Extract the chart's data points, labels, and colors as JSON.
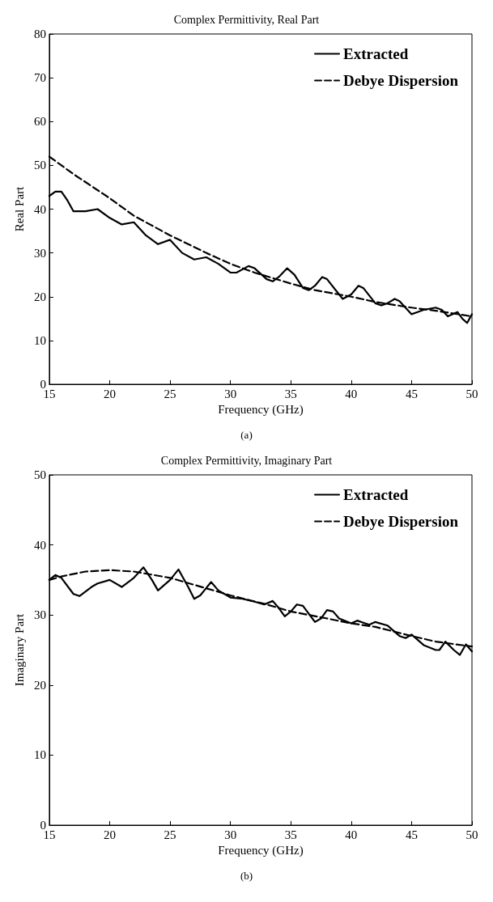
{
  "chart_data": [
    {
      "type": "line",
      "title": "Complex Permittivity, Real Part",
      "xlabel": "Frequency (GHz)",
      "ylabel": "Real Part",
      "annotations": [
        "(a)"
      ],
      "xlim": [
        15,
        50
      ],
      "xticks": [
        15,
        20,
        25,
        30,
        35,
        40,
        45,
        50
      ],
      "ylim": [
        0,
        80
      ],
      "yticks": [
        0,
        10,
        20,
        30,
        40,
        50,
        60,
        70,
        80
      ],
      "grid": false,
      "legend": "top right",
      "marker": "none",
      "series": [
        {
          "name": "Extracted",
          "color": "#000000",
          "line_style": "solid",
          "x": [
            15,
            15.5,
            16,
            16.5,
            17,
            18,
            19,
            20,
            21,
            22,
            23,
            24,
            25,
            26,
            27,
            28,
            29,
            30,
            30.5,
            31.5,
            32,
            33,
            33.5,
            34,
            34.7,
            35.3,
            36,
            36.5,
            37,
            37.6,
            38,
            39,
            39.3,
            40,
            40.6,
            41,
            42,
            42.5,
            43,
            43.6,
            44,
            45,
            45.5,
            46,
            47,
            47.5,
            48,
            48.8,
            49.2,
            49.6,
            50
          ],
          "values": [
            43,
            44,
            44,
            42,
            39.5,
            39.5,
            40,
            38,
            36.5,
            37,
            34,
            32,
            33,
            30,
            28.5,
            29,
            27.5,
            25.5,
            25.5,
            27,
            26.5,
            24,
            23.5,
            24.5,
            26.5,
            25,
            22,
            21.5,
            22.5,
            24.5,
            24,
            20.5,
            19.5,
            20.5,
            22.5,
            22,
            18.5,
            18,
            18.5,
            19.5,
            19,
            16,
            16.5,
            17,
            17.5,
            17,
            15.5,
            16.5,
            15,
            14,
            16
          ]
        },
        {
          "name": "Debye Dispersion",
          "color": "#000000",
          "line_style": "dashed",
          "x": [
            15,
            17,
            20,
            22,
            25,
            28,
            30,
            32,
            35,
            37,
            40,
            42,
            45,
            47,
            50
          ],
          "values": [
            52,
            48,
            42.5,
            38.5,
            34,
            30,
            27.5,
            25.5,
            23,
            21.5,
            20,
            18.8,
            17.5,
            16.8,
            15.5
          ]
        }
      ]
    },
    {
      "type": "line",
      "title": "Complex Permittivity, Imaginary Part",
      "xlabel": "Frequency (GHz)",
      "ylabel": "Imaginary Part",
      "annotations": [
        "(b)"
      ],
      "xlim": [
        15,
        50
      ],
      "xticks": [
        15,
        20,
        25,
        30,
        35,
        40,
        45,
        50
      ],
      "ylim": [
        0,
        50
      ],
      "yticks": [
        0,
        10,
        20,
        30,
        40,
        50
      ],
      "grid": false,
      "legend": "top right",
      "marker": "none",
      "series": [
        {
          "name": "Extracted",
          "color": "#000000",
          "line_style": "solid",
          "x": [
            15,
            15.5,
            16,
            17,
            17.5,
            18.5,
            19,
            20,
            21,
            22,
            22.8,
            23.5,
            24,
            25,
            25.7,
            26.5,
            27,
            27.5,
            28.4,
            29,
            30,
            31,
            32,
            32.8,
            33.5,
            34,
            34.5,
            35,
            35.5,
            36,
            37,
            37.5,
            38,
            38.5,
            39,
            40,
            40.5,
            41,
            41.5,
            42,
            43,
            44,
            44.5,
            45,
            46,
            47,
            47.3,
            47.8,
            48.5,
            49,
            49.5,
            50
          ],
          "values": [
            35,
            35.7,
            35.3,
            33,
            32.7,
            34,
            34.5,
            35,
            34,
            35.3,
            36.8,
            35,
            33.5,
            35,
            36.5,
            34,
            32.3,
            32.8,
            34.7,
            33.5,
            32.5,
            32.3,
            31.9,
            31.5,
            32,
            31,
            29.8,
            30.5,
            31.5,
            31.3,
            29,
            29.5,
            30.7,
            30.5,
            29.5,
            28.8,
            29.2,
            28.9,
            28.6,
            29,
            28.5,
            27,
            26.7,
            27.2,
            25.7,
            25,
            25,
            26.2,
            25,
            24.3,
            25.8,
            24.8
          ]
        },
        {
          "name": "Debye Dispersion",
          "color": "#000000",
          "line_style": "dashed",
          "x": [
            15,
            16,
            18,
            20,
            22,
            25,
            28,
            30,
            33,
            35,
            38,
            40,
            42,
            45,
            47,
            50
          ],
          "values": [
            35,
            35.5,
            36.2,
            36.4,
            36.2,
            35.3,
            33.8,
            32.8,
            31.5,
            30.5,
            29.5,
            28.8,
            28.3,
            27,
            26.2,
            25.5
          ]
        }
      ]
    }
  ]
}
